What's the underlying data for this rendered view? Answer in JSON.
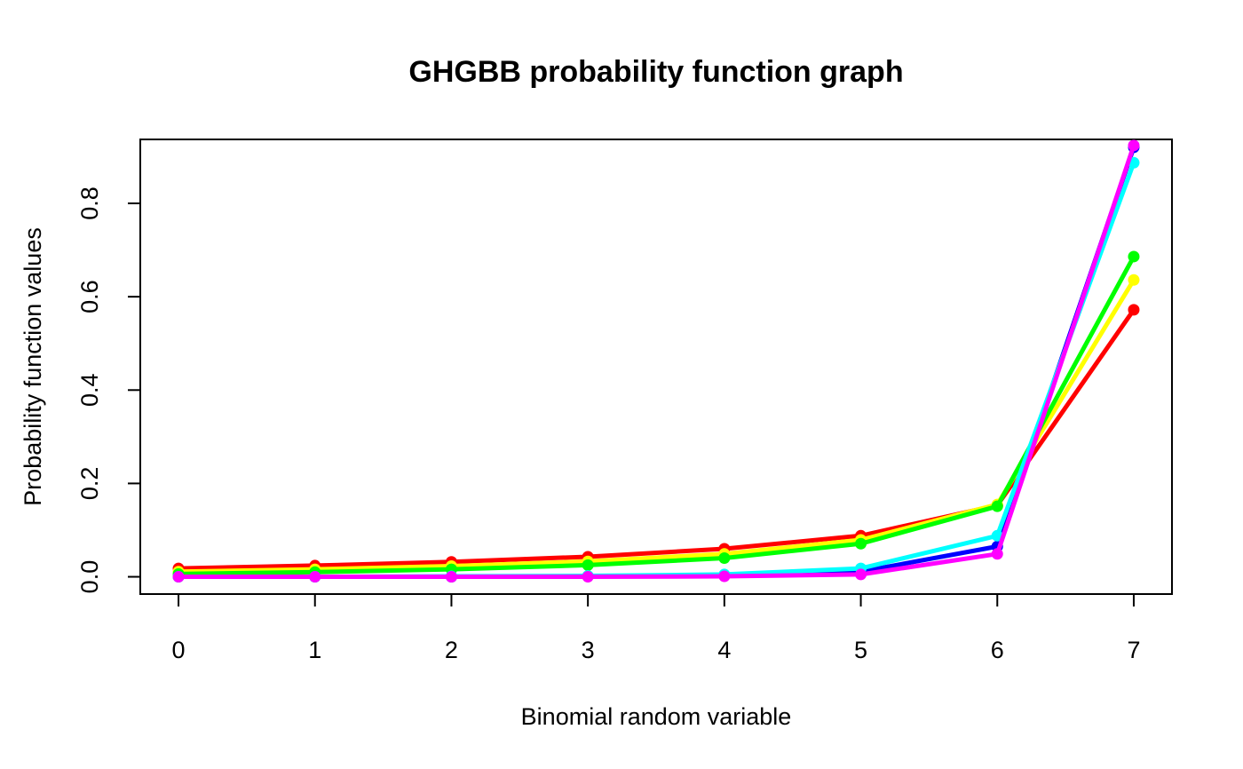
{
  "chart_data": {
    "type": "line",
    "title": "GHGBB probability function graph",
    "xlabel": "Binomial random variable",
    "ylabel": "Probability function values",
    "x": [
      0,
      1,
      2,
      3,
      4,
      5,
      6,
      7
    ],
    "xlim": [
      -0.28,
      7.28
    ],
    "ylim": [
      -0.037,
      0.937
    ],
    "x_ticks": [
      "0",
      "1",
      "2",
      "3",
      "4",
      "5",
      "6",
      "7"
    ],
    "y_ticks": [
      "0.0",
      "0.2",
      "0.4",
      "0.6",
      "0.8"
    ],
    "y_tick_values": [
      0.0,
      0.2,
      0.4,
      0.6,
      0.8
    ],
    "grid": false,
    "series": [
      {
        "color": "#FF0000",
        "values": [
          0.018,
          0.024,
          0.032,
          0.043,
          0.06,
          0.088,
          0.153,
          0.572
        ]
      },
      {
        "color": "#FFFF00",
        "values": [
          0.011,
          0.016,
          0.023,
          0.033,
          0.049,
          0.079,
          0.155,
          0.636
        ]
      },
      {
        "color": "#00FF00",
        "values": [
          0.006,
          0.01,
          0.016,
          0.025,
          0.04,
          0.071,
          0.151,
          0.686
        ]
      },
      {
        "color": "#0000FF",
        "values": [
          0.0,
          0.0,
          0.0,
          0.001,
          0.003,
          0.011,
          0.065,
          0.92
        ]
      },
      {
        "color": "#00FFFF",
        "values": [
          0.0,
          0.0,
          0.001,
          0.002,
          0.005,
          0.018,
          0.088,
          0.887
        ]
      },
      {
        "color": "#FF00FF",
        "values": [
          0.0,
          0.0,
          0.0,
          0.0,
          0.001,
          0.005,
          0.049,
          0.924
        ]
      }
    ]
  }
}
